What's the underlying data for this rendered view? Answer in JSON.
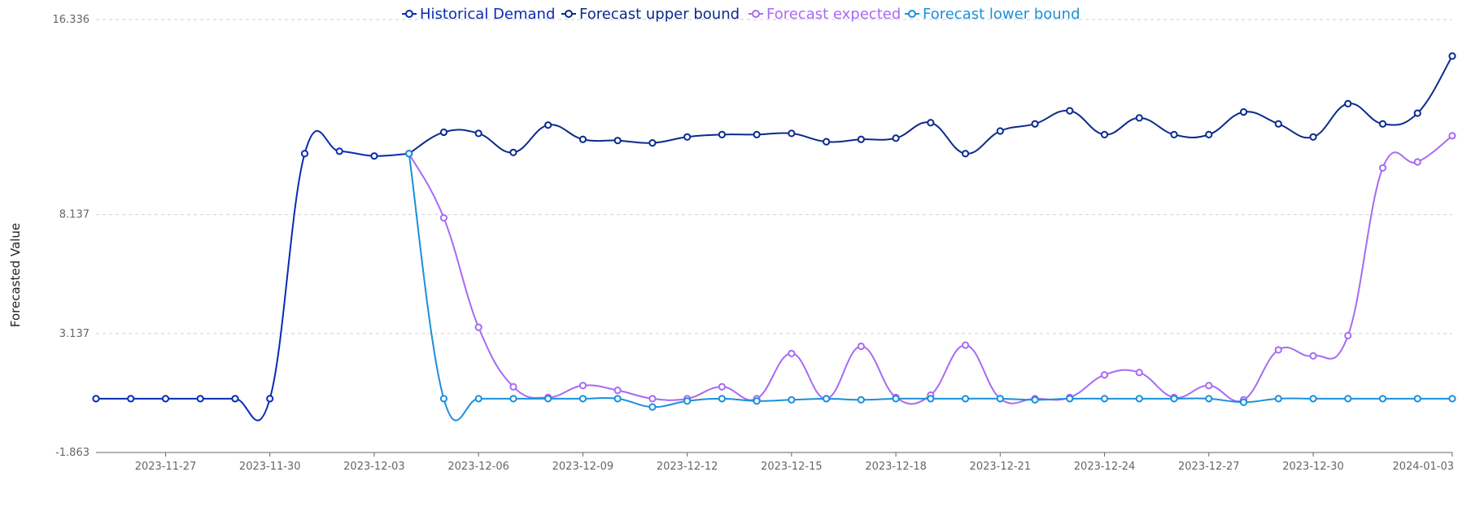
{
  "chart_data": {
    "type": "line",
    "title": "",
    "xlabel": "",
    "ylabel": "Forecasted Value",
    "ylim": [
      -1.863,
      16.336
    ],
    "y_ticks": [
      "16.336",
      "8.137",
      "3.137",
      "-1.863"
    ],
    "x": [
      "2023-11-25",
      "2023-11-26",
      "2023-11-27",
      "2023-11-28",
      "2023-11-29",
      "2023-11-30",
      "2023-12-01",
      "2023-12-02",
      "2023-12-03",
      "2023-12-04",
      "2023-12-05",
      "2023-12-06",
      "2023-12-07",
      "2023-12-08",
      "2023-12-09",
      "2023-12-10",
      "2023-12-11",
      "2023-12-12",
      "2023-12-13",
      "2023-12-14",
      "2023-12-15",
      "2023-12-16",
      "2023-12-17",
      "2023-12-18",
      "2023-12-19",
      "2023-12-20",
      "2023-12-21",
      "2023-12-22",
      "2023-12-23",
      "2023-12-24",
      "2023-12-25",
      "2023-12-26",
      "2023-12-27",
      "2023-12-28",
      "2023-12-29",
      "2023-12-30",
      "2023-12-31",
      "2024-01-01",
      "2024-01-02",
      "2024-01-03"
    ],
    "x_ticks": [
      "2023-11-27",
      "2023-11-30",
      "2023-12-03",
      "2023-12-06",
      "2023-12-09",
      "2023-12-12",
      "2023-12-15",
      "2023-12-18",
      "2023-12-21",
      "2023-12-24",
      "2023-12-27",
      "2023-12-30",
      "2024-01-03"
    ],
    "legend_position": "top-center",
    "grid": true,
    "series": [
      {
        "name": "Historical Demand",
        "color": "#0a2bb3",
        "values": [
          0.4,
          0.4,
          0.4,
          0.4,
          0.4,
          0.4,
          10.7,
          10.8,
          10.6,
          10.7,
          null,
          null,
          null,
          null,
          null,
          null,
          null,
          null,
          null,
          null,
          null,
          null,
          null,
          null,
          null,
          null,
          null,
          null,
          null,
          null,
          null,
          null,
          null,
          null,
          null,
          null,
          null,
          null,
          null,
          null
        ]
      },
      {
        "name": "Forecast upper bound",
        "color": "#0b2a8c",
        "values": [
          null,
          null,
          null,
          null,
          null,
          null,
          null,
          null,
          null,
          10.7,
          11.6,
          11.55,
          10.75,
          11.9,
          11.3,
          11.25,
          11.15,
          11.4,
          11.5,
          11.5,
          11.55,
          11.2,
          11.3,
          11.35,
          12.0,
          10.7,
          11.65,
          11.95,
          12.5,
          11.5,
          12.2,
          11.5,
          11.5,
          12.45,
          11.95,
          11.4,
          12.8,
          11.95,
          12.4,
          14.8
        ]
      },
      {
        "name": "Forecast expected",
        "color": "#a86af5",
        "values": [
          null,
          null,
          null,
          null,
          null,
          null,
          null,
          null,
          null,
          10.7,
          8.0,
          3.4,
          0.9,
          0.45,
          0.95,
          0.75,
          0.4,
          0.4,
          0.9,
          0.4,
          2.3,
          0.4,
          2.6,
          0.45,
          0.55,
          2.65,
          0.4,
          0.4,
          0.45,
          1.4,
          1.5,
          0.45,
          0.95,
          0.35,
          2.45,
          2.2,
          3.05,
          10.1,
          10.35,
          11.45
        ]
      },
      {
        "name": "Forecast lower bound",
        "color": "#1a90db",
        "values": [
          null,
          null,
          null,
          null,
          null,
          null,
          null,
          null,
          null,
          10.7,
          0.4,
          0.4,
          0.4,
          0.4,
          0.4,
          0.4,
          0.05,
          0.3,
          0.4,
          0.3,
          0.35,
          0.4,
          0.35,
          0.4,
          0.4,
          0.4,
          0.4,
          0.35,
          0.4,
          0.4,
          0.4,
          0.4,
          0.4,
          0.25,
          0.4,
          0.4,
          0.4,
          0.4,
          0.4,
          0.4
        ]
      }
    ]
  }
}
